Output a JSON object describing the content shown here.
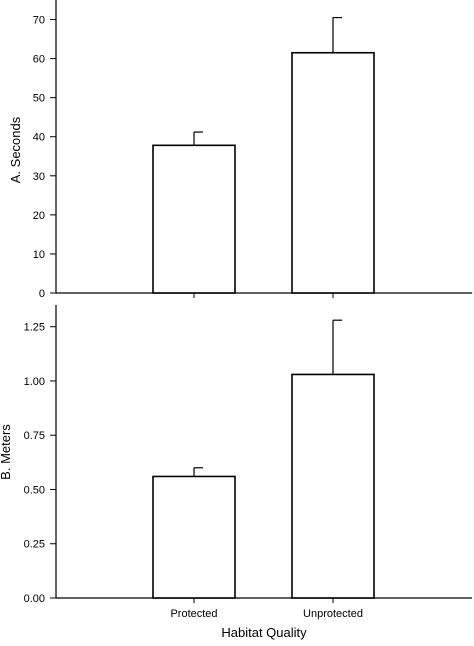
{
  "chart_data": [
    {
      "type": "bar",
      "categories": [
        "Protected",
        "Unprotected"
      ],
      "values": [
        37.8,
        61.5
      ],
      "error_upper": [
        41.2,
        70.5
      ],
      "ylabel": "A. Seconds",
      "ylim": [
        0,
        75
      ],
      "yticks": [
        0,
        10,
        20,
        30,
        40,
        50,
        60,
        70
      ],
      "grid": false
    },
    {
      "type": "bar",
      "categories": [
        "Protected",
        "Unprotected"
      ],
      "values": [
        0.56,
        1.03
      ],
      "error_upper": [
        0.6,
        1.28
      ],
      "ylabel": "B. Meters",
      "xlabel": "Habitat Quality",
      "ylim": [
        0,
        1.35
      ],
      "yticks": [
        "0.00",
        "0.25",
        "0.50",
        "0.75",
        "1.00",
        "1.25"
      ],
      "grid": false
    }
  ]
}
